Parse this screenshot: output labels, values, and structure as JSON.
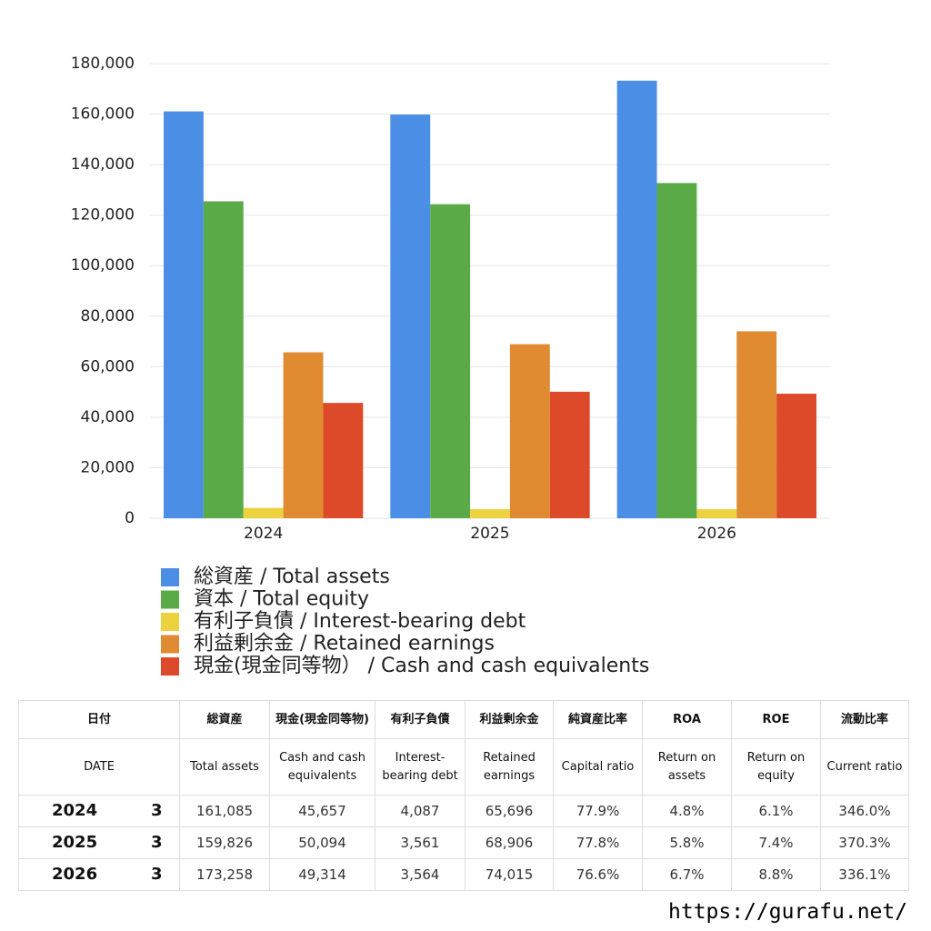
{
  "chart_data": {
    "type": "bar",
    "categories": [
      "2024",
      "2025",
      "2026"
    ],
    "series": [
      {
        "name": "総資産 / Total assets",
        "color": "#4a8ee6",
        "values": [
          161085,
          159826,
          173258
        ]
      },
      {
        "name": "資本 / Total equity",
        "color": "#5aab48",
        "values": [
          125485,
          124345,
          132716
        ]
      },
      {
        "name": "有利子負債 / Interest-bearing debt",
        "color": "#ecd23e",
        "values": [
          4087,
          3561,
          3564
        ]
      },
      {
        "name": "利益剰余金 / Retained earnings",
        "color": "#e08a32",
        "values": [
          65696,
          68906,
          74015
        ]
      },
      {
        "name": "現金(現金同等物）  /  Cash and cash equivalents",
        "color": "#dc4a2a",
        "values": [
          45657,
          50094,
          49314
        ]
      }
    ],
    "ylim": [
      0,
      180000
    ],
    "yticks": [
      0,
      {
        "value": 20000,
        "label": "20,000"
      },
      {
        "value": 40000,
        "label": "40,000"
      },
      {
        "value": 60000,
        "label": "60,000"
      },
      {
        "value": 80000,
        "label": "80,000"
      },
      {
        "value": 100000,
        "label": "100,000"
      },
      {
        "value": 120000,
        "label": "120,000"
      },
      {
        "value": 140000,
        "label": "140,000"
      },
      {
        "value": 160000,
        "label": "160,000"
      },
      {
        "value": 180000,
        "label": "180,000"
      }
    ],
    "grid": true
  },
  "table": {
    "header1": [
      "日付",
      "総資産",
      "現金(現金同等物)",
      "有利子負債",
      "利益剰余金",
      "純資産比率",
      "ROA",
      "ROE",
      "流動比率"
    ],
    "header2": [
      "DATE",
      "Total assets",
      "Cash and cash equivalents",
      "Interest-bearing debt",
      "Retained earnings",
      "Capital ratio",
      "Return on assets",
      "Return on equity",
      "Current ratio"
    ],
    "rows": [
      [
        "2024",
        "3",
        "161,085",
        "45,657",
        "4,087",
        "65,696",
        "77.9%",
        "4.8%",
        "6.1%",
        "346.0%"
      ],
      [
        "2025",
        "3",
        "159,826",
        "50,094",
        "3,561",
        "68,906",
        "77.8%",
        "5.8%",
        "7.4%",
        "370.3%"
      ],
      [
        "2026",
        "3",
        "173,258",
        "49,314",
        "3,564",
        "74,015",
        "76.6%",
        "6.7%",
        "8.8%",
        "336.1%"
      ]
    ]
  },
  "footer": "https://gurafu.net/"
}
